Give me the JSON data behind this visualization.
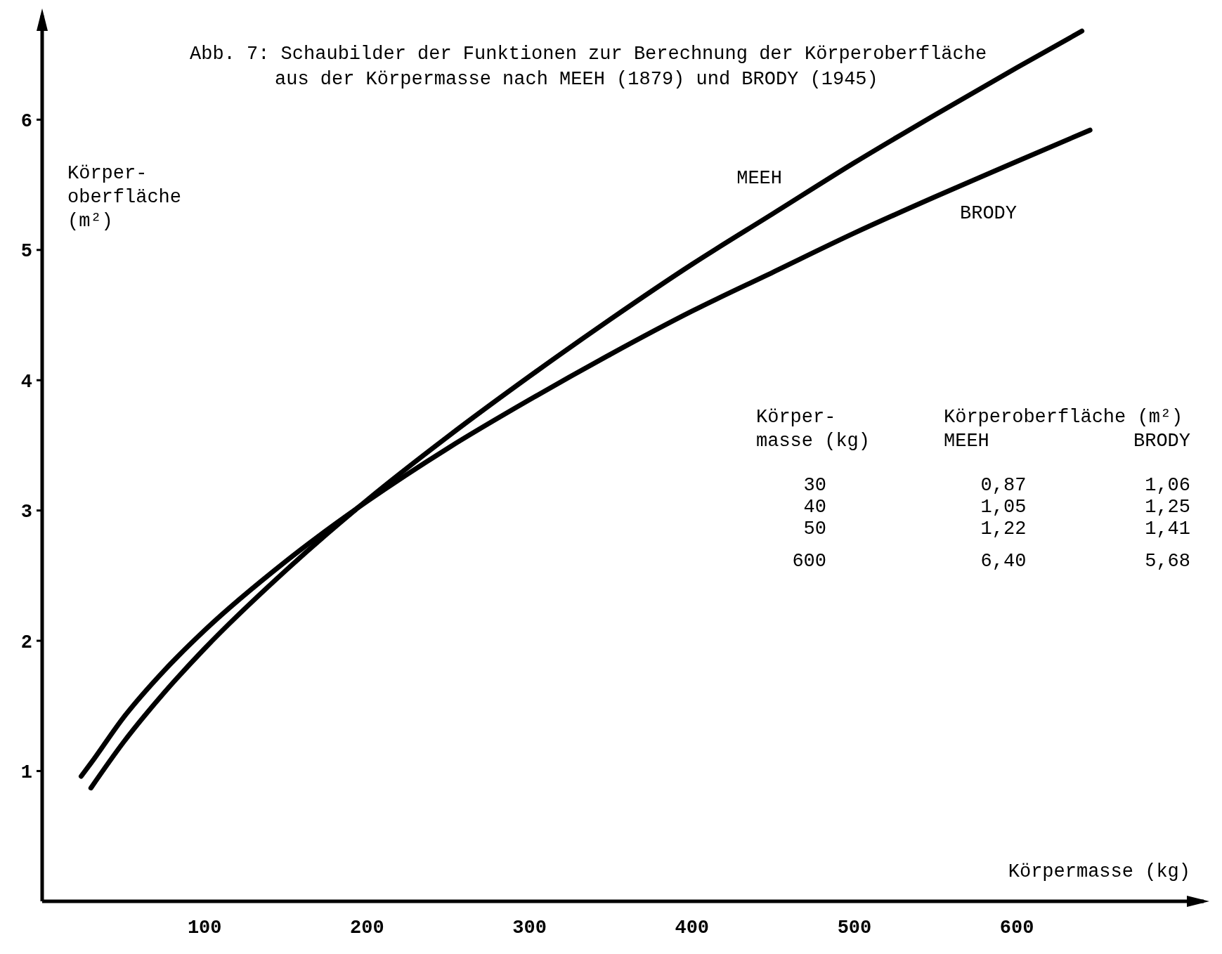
{
  "chart_data": {
    "type": "line",
    "title": "Abb. 7: Schaubilder der Funktionen zur Berechnung der Körperoberfläche\naus der Körpermasse nach MEEH (1879) und BRODY (1945)",
    "xlabel": "Körpermasse (kg)",
    "ylabel": "Körper-\noberfläche\n(m²)",
    "xlim": [
      0,
      715
    ],
    "ylim": [
      0,
      6.8
    ],
    "xticks": [
      100,
      200,
      300,
      400,
      500,
      600
    ],
    "yticks": [
      1,
      2,
      3,
      4,
      5,
      6
    ],
    "marker": "none",
    "line_style": "solid",
    "series": [
      {
        "name": "MEEH",
        "color": "#000000",
        "x": [
          30,
          50,
          75,
          100,
          150,
          200,
          250,
          300,
          350,
          400,
          450,
          500,
          550,
          600,
          640
        ],
        "values": [
          0.87,
          1.22,
          1.6,
          1.94,
          2.54,
          3.08,
          3.57,
          4.03,
          4.47,
          4.89,
          5.28,
          5.67,
          6.04,
          6.4,
          6.68
        ]
      },
      {
        "name": "BRODY",
        "color": "#000000",
        "x": [
          24,
          30,
          50,
          75,
          100,
          150,
          200,
          250,
          300,
          350,
          400,
          450,
          500,
          550,
          600,
          645
        ],
        "values": [
          0.96,
          1.06,
          1.41,
          1.77,
          2.08,
          2.61,
          3.07,
          3.48,
          3.85,
          4.2,
          4.53,
          4.83,
          5.13,
          5.41,
          5.68,
          5.92
        ]
      }
    ],
    "annotations": [
      "Körper-\nmasse (kg)",
      "Körperoberfläche (m²)",
      "MEEH",
      "BRODY",
      "30",
      "0,87",
      "1,06",
      "40",
      "1,05",
      "1,25",
      "50",
      "1,22",
      "1,41",
      "600",
      "6,40",
      "5,68"
    ]
  }
}
